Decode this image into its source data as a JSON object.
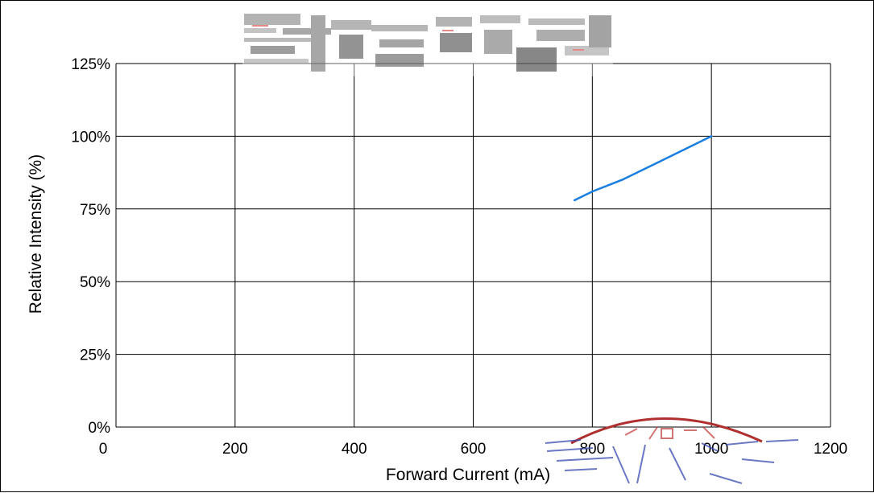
{
  "chart_data": {
    "type": "line",
    "title": "",
    "xlabel": "Forward Current (mA)",
    "ylabel": "Relative Intensity (%)",
    "xlim": [
      0,
      1200
    ],
    "ylim": [
      0,
      125
    ],
    "x_ticks": [
      "0",
      "200",
      "400",
      "600",
      "800",
      "1000",
      "1200"
    ],
    "y_ticks": [
      "0%",
      "25%",
      "50%",
      "75%",
      "100%",
      "125%"
    ],
    "grid": true,
    "series": [
      {
        "x": [
          770,
          800,
          850,
          900,
          950,
          1000
        ],
        "y": [
          78,
          81,
          85,
          90,
          95,
          100
        ]
      }
    ],
    "colors": {
      "line": "#1a7fe0",
      "grid": "#000000",
      "stamp": "#c0392b"
    }
  }
}
